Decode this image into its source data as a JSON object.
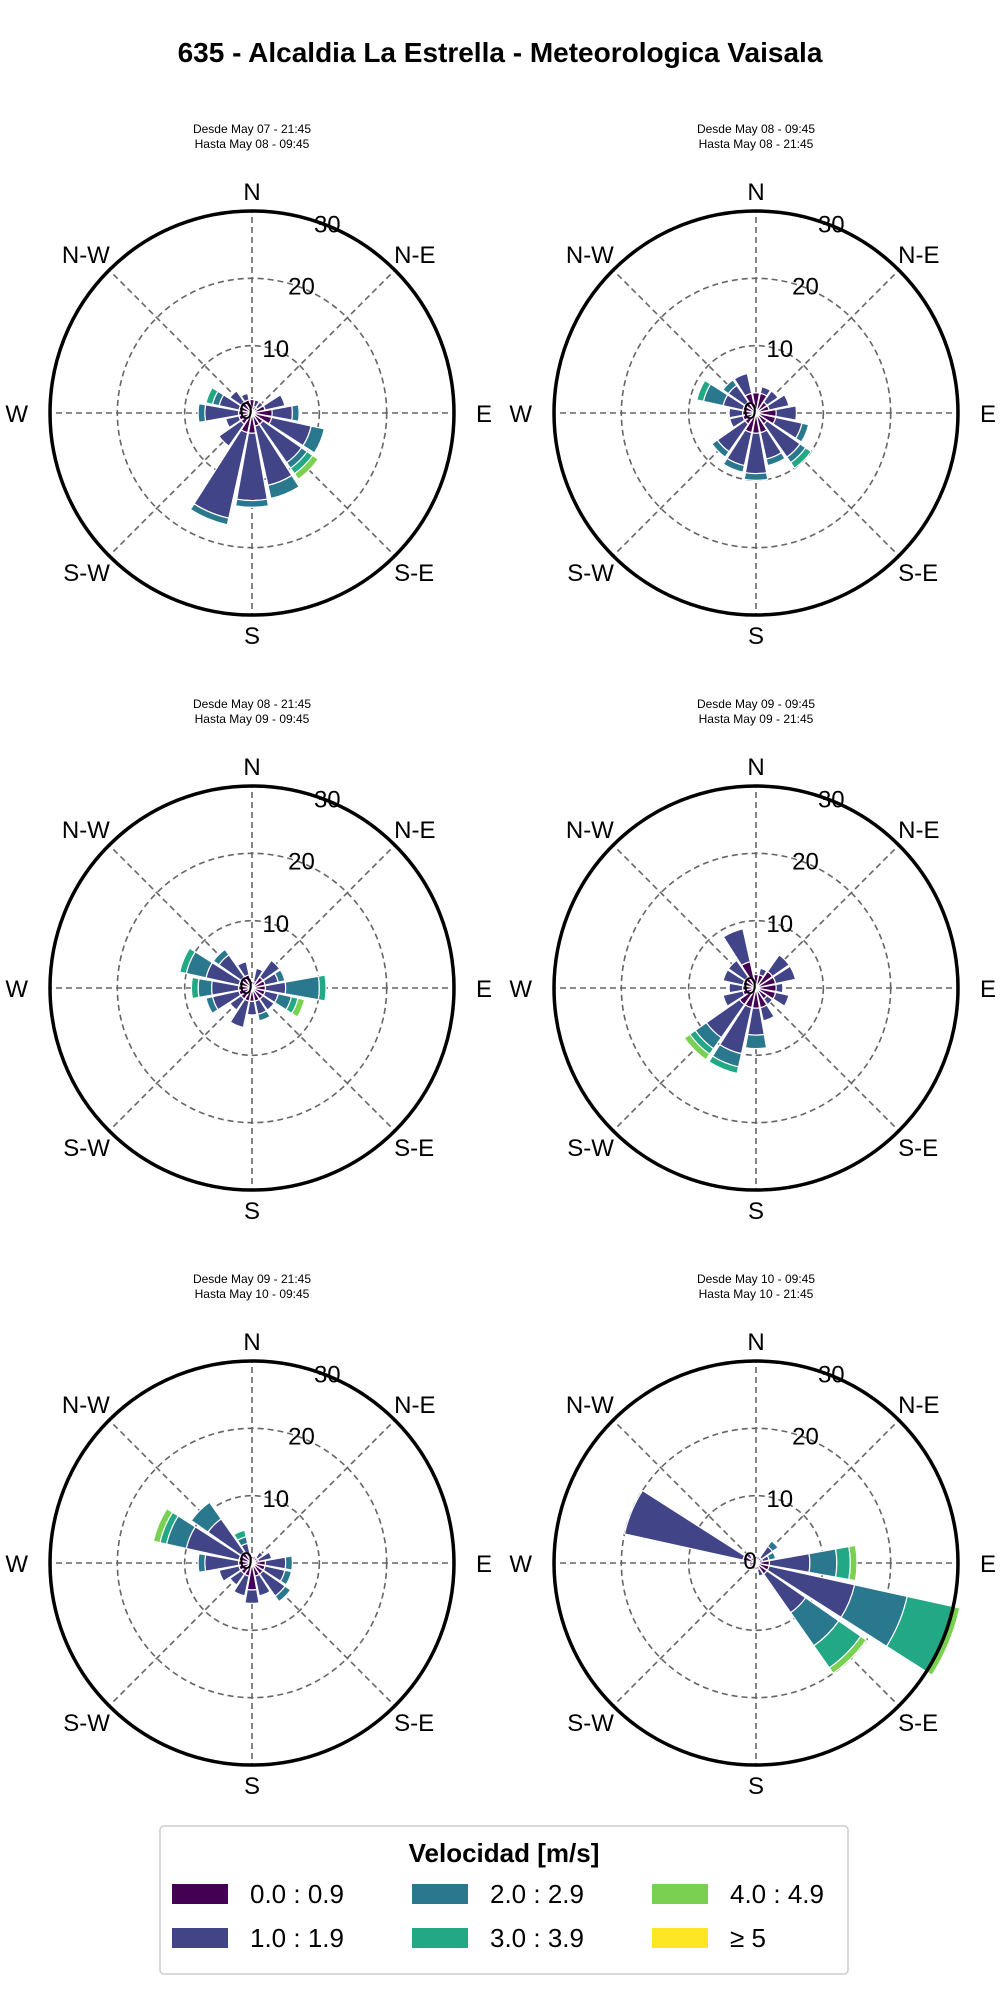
{
  "title": "635 - Alcaldia La Estrella - Meteorologica Vaisala",
  "legend": {
    "title": "Velocidad [m/s]",
    "bins": [
      {
        "label": "0.0 : 0.9",
        "color": "#440154"
      },
      {
        "label": "1.0 : 1.9",
        "color": "#414487"
      },
      {
        "label": "2.0 : 2.9",
        "color": "#2a788e"
      },
      {
        "label": "3.0 : 3.9",
        "color": "#22a884"
      },
      {
        "label": "4.0 : 4.9",
        "color": "#7ad151"
      },
      {
        "label": "≥  5",
        "color": "#fde725"
      }
    ]
  },
  "chart_data": {
    "type": "windrose",
    "units": "%",
    "rmax": 30,
    "radial_ticks": [
      "0",
      "10",
      "20",
      "30"
    ],
    "direction_labels": [
      "N",
      "N-E",
      "E",
      "S-E",
      "S",
      "S-W",
      "W",
      "N-W"
    ],
    "sector_width_deg": 22.5,
    "grid": true,
    "panels": [
      {
        "subtitle_1": "Desde May 07 - 21:45",
        "subtitle_2": "Hasta May 08 - 09:45",
        "sectors": [
          {
            "dir": 0,
            "values": [
              2,
              0,
              0,
              0,
              0,
              0
            ]
          },
          {
            "dir": 22.5,
            "values": [
              1,
              1,
              0,
              0,
              0,
              0
            ]
          },
          {
            "dir": 45,
            "values": [
              1,
              1,
              0,
              0,
              0,
              0
            ]
          },
          {
            "dir": 67.5,
            "values": [
              2,
              3,
              0,
              0,
              0,
              0
            ]
          },
          {
            "dir": 90,
            "values": [
              3,
              3,
              1,
              0,
              0,
              0
            ]
          },
          {
            "dir": 112.5,
            "values": [
              3,
              6,
              2,
              0,
              0,
              0
            ]
          },
          {
            "dir": 135,
            "values": [
              2,
              7,
              1,
              1,
              1,
              0
            ]
          },
          {
            "dir": 157.5,
            "values": [
              2,
              9,
              2,
              0,
              0,
              0
            ]
          },
          {
            "dir": 180,
            "values": [
              3,
              10,
              1,
              0,
              0,
              0
            ]
          },
          {
            "dir": 202.5,
            "values": [
              3,
              13,
              1,
              0,
              0,
              0
            ]
          },
          {
            "dir": 225,
            "values": [
              2,
              4,
              0,
              0,
              0,
              0
            ]
          },
          {
            "dir": 247.5,
            "values": [
              2,
              2,
              0,
              0,
              0,
              0
            ]
          },
          {
            "dir": 270,
            "values": [
              2,
              5,
              1,
              0,
              0,
              0
            ]
          },
          {
            "dir": 292.5,
            "values": [
              2,
              3,
              1,
              1,
              0,
              0
            ]
          },
          {
            "dir": 315,
            "values": [
              2,
              2,
              0,
              0,
              0,
              0
            ]
          },
          {
            "dir": 337.5,
            "values": [
              2,
              1,
              0,
              0,
              0,
              0
            ]
          }
        ]
      },
      {
        "subtitle_1": "Desde May 08 - 09:45",
        "subtitle_2": "Hasta May 08 - 21:45",
        "sectors": [
          {
            "dir": 0,
            "values": [
              3,
              0,
              0,
              0,
              0,
              0
            ]
          },
          {
            "dir": 22.5,
            "values": [
              3,
              1,
              0,
              0,
              0,
              0
            ]
          },
          {
            "dir": 45,
            "values": [
              2,
              2,
              0,
              0,
              0,
              0
            ]
          },
          {
            "dir": 67.5,
            "values": [
              2,
              3,
              0,
              0,
              0,
              0
            ]
          },
          {
            "dir": 90,
            "values": [
              3,
              3,
              0,
              0,
              0,
              0
            ]
          },
          {
            "dir": 112.5,
            "values": [
              3,
              4,
              1,
              0,
              0,
              0
            ]
          },
          {
            "dir": 135,
            "values": [
              2,
              6,
              1,
              1,
              0,
              0
            ]
          },
          {
            "dir": 157.5,
            "values": [
              3,
              4,
              1,
              0,
              0,
              0
            ]
          },
          {
            "dir": 180,
            "values": [
              3,
              6,
              1,
              0,
              0,
              0
            ]
          },
          {
            "dir": 202.5,
            "values": [
              3,
              5,
              1,
              0,
              0,
              0
            ]
          },
          {
            "dir": 225,
            "values": [
              2,
              5,
              1,
              0,
              0,
              0
            ]
          },
          {
            "dir": 247.5,
            "values": [
              2,
              2,
              0,
              0,
              0,
              0
            ]
          },
          {
            "dir": 270,
            "values": [
              2,
              2,
              0,
              0,
              0,
              0
            ]
          },
          {
            "dir": 292.5,
            "values": [
              2,
              3,
              3,
              1,
              0,
              0
            ]
          },
          {
            "dir": 315,
            "values": [
              2,
              3,
              1,
              0,
              0,
              0
            ]
          },
          {
            "dir": 337.5,
            "values": [
              3,
              3,
              0,
              0,
              0,
              0
            ]
          }
        ]
      },
      {
        "subtitle_1": "Desde May 08 - 21:45",
        "subtitle_2": "Hasta May 09 - 09:45",
        "sectors": [
          {
            "dir": 0,
            "values": [
              1,
              0,
              0,
              0,
              0,
              0
            ]
          },
          {
            "dir": 22.5,
            "values": [
              1,
              2,
              0,
              0,
              0,
              0
            ]
          },
          {
            "dir": 45,
            "values": [
              2,
              3,
              0,
              0,
              0,
              0
            ]
          },
          {
            "dir": 67.5,
            "values": [
              2,
              2,
              1,
              0,
              0,
              0
            ]
          },
          {
            "dir": 90,
            "values": [
              2,
              3,
              5,
              1,
              0,
              0
            ]
          },
          {
            "dir": 112.5,
            "values": [
              2,
              2,
              2,
              1,
              1,
              0
            ]
          },
          {
            "dir": 135,
            "values": [
              2,
              2,
              0,
              0,
              0,
              0
            ]
          },
          {
            "dir": 157.5,
            "values": [
              2,
              2,
              1,
              0,
              0,
              0
            ]
          },
          {
            "dir": 180,
            "values": [
              2,
              2,
              0,
              0,
              0,
              0
            ]
          },
          {
            "dir": 202.5,
            "values": [
              2,
              4,
              0,
              0,
              0,
              0
            ]
          },
          {
            "dir": 225,
            "values": [
              2,
              2,
              0,
              0,
              0,
              0
            ]
          },
          {
            "dir": 247.5,
            "values": [
              2,
              4,
              1,
              0,
              0,
              0
            ]
          },
          {
            "dir": 270,
            "values": [
              2,
              4,
              2,
              1,
              0,
              0
            ]
          },
          {
            "dir": 292.5,
            "values": [
              2,
              5,
              3,
              1,
              0,
              0
            ]
          },
          {
            "dir": 315,
            "values": [
              2,
              4,
              1,
              0,
              0,
              0
            ]
          },
          {
            "dir": 337.5,
            "values": [
              2,
              2,
              0,
              0,
              0,
              0
            ]
          }
        ]
      },
      {
        "subtitle_1": "Desde May 09 - 09:45",
        "subtitle_2": "Hasta May 09 - 21:45",
        "sectors": [
          {
            "dir": 0,
            "values": [
              2,
              0,
              0,
              0,
              0,
              0
            ]
          },
          {
            "dir": 22.5,
            "values": [
              2,
              1,
              0,
              0,
              0,
              0
            ]
          },
          {
            "dir": 45,
            "values": [
              3,
              3,
              0,
              0,
              0,
              0
            ]
          },
          {
            "dir": 67.5,
            "values": [
              3,
              3,
              0,
              0,
              0,
              0
            ]
          },
          {
            "dir": 90,
            "values": [
              3,
              1,
              0,
              0,
              0,
              0
            ]
          },
          {
            "dir": 112.5,
            "values": [
              3,
              2,
              0,
              0,
              0,
              0
            ]
          },
          {
            "dir": 135,
            "values": [
              2,
              1,
              0,
              0,
              0,
              0
            ]
          },
          {
            "dir": 157.5,
            "values": [
              3,
              2,
              0,
              0,
              0,
              0
            ]
          },
          {
            "dir": 180,
            "values": [
              3,
              4,
              2,
              0,
              0,
              0
            ]
          },
          {
            "dir": 202.5,
            "values": [
              3,
              7,
              2,
              1,
              0,
              0
            ]
          },
          {
            "dir": 225,
            "values": [
              3,
              6,
              2,
              1,
              1,
              0
            ]
          },
          {
            "dir": 247.5,
            "values": [
              2,
              3,
              0,
              0,
              0,
              0
            ]
          },
          {
            "dir": 270,
            "values": [
              2,
              2,
              0,
              0,
              0,
              0
            ]
          },
          {
            "dir": 292.5,
            "values": [
              2,
              3,
              0,
              0,
              0,
              0
            ]
          },
          {
            "dir": 315,
            "values": [
              2,
              3,
              0,
              0,
              0,
              0
            ]
          },
          {
            "dir": 337.5,
            "values": [
              4,
              5,
              0,
              0,
              0,
              0
            ]
          }
        ]
      },
      {
        "subtitle_1": "Desde May 09 - 21:45",
        "subtitle_2": "Hasta May 10 - 09:45",
        "sectors": [
          {
            "dir": 0,
            "values": [
              1,
              0,
              0,
              0,
              0,
              0
            ]
          },
          {
            "dir": 22.5,
            "values": [
              1,
              0,
              0,
              0,
              0,
              0
            ]
          },
          {
            "dir": 45,
            "values": [
              1,
              1,
              0,
              0,
              0,
              0
            ]
          },
          {
            "dir": 67.5,
            "values": [
              1,
              2,
              0,
              0,
              0,
              0
            ]
          },
          {
            "dir": 90,
            "values": [
              2,
              3,
              1,
              0,
              0,
              0
            ]
          },
          {
            "dir": 112.5,
            "values": [
              2,
              3,
              1,
              0,
              0,
              0
            ]
          },
          {
            "dir": 135,
            "values": [
              2,
              4,
              1,
              0,
              0,
              0
            ]
          },
          {
            "dir": 157.5,
            "values": [
              2,
              3,
              0,
              0,
              0,
              0
            ]
          },
          {
            "dir": 180,
            "values": [
              4,
              2,
              0,
              0,
              0,
              0
            ]
          },
          {
            "dir": 202.5,
            "values": [
              2,
              3,
              0,
              0,
              0,
              0
            ]
          },
          {
            "dir": 225,
            "values": [
              2,
              2,
              0,
              0,
              0,
              0
            ]
          },
          {
            "dir": 247.5,
            "values": [
              2,
              3,
              0,
              0,
              0,
              0
            ]
          },
          {
            "dir": 270,
            "values": [
              2,
              5,
              1,
              0,
              0,
              0
            ]
          },
          {
            "dir": 292.5,
            "values": [
              2,
              8,
              3,
              1,
              1,
              0
            ]
          },
          {
            "dir": 315,
            "values": [
              2,
              6,
              3,
              0,
              0,
              0
            ]
          },
          {
            "dir": 337.5,
            "values": [
              1,
              2,
              1,
              1,
              0,
              0
            ]
          }
        ]
      },
      {
        "subtitle_1": "Desde May 10 - 09:45",
        "subtitle_2": "Hasta May 10 - 21:45",
        "sectors": [
          {
            "dir": 0,
            "values": [
              1,
              0,
              0,
              0,
              0,
              0
            ]
          },
          {
            "dir": 22.5,
            "values": [
              1,
              0,
              0,
              0,
              0,
              0
            ]
          },
          {
            "dir": 45,
            "values": [
              1,
              2,
              1,
              0,
              0,
              0
            ]
          },
          {
            "dir": 67.5,
            "values": [
              1,
              1,
              1,
              0,
              0,
              0
            ]
          },
          {
            "dir": 90,
            "values": [
              2,
              6,
              4,
              2,
              1,
              0
            ]
          },
          {
            "dir": 112.5,
            "values": [
              2,
              13,
              8,
              7,
              1,
              0
            ]
          },
          {
            "dir": 135,
            "values": [
              2,
              7,
              6,
              4,
              1,
              0
            ]
          },
          {
            "dir": 157.5,
            "values": [
              1,
              1,
              0,
              0,
              0,
              0
            ]
          },
          {
            "dir": 180,
            "values": [
              1,
              0,
              0,
              0,
              0,
              0
            ]
          },
          {
            "dir": 202.5,
            "values": [
              1,
              0,
              0,
              0,
              0,
              0
            ]
          },
          {
            "dir": 225,
            "values": [
              1,
              0,
              0,
              0,
              0,
              0
            ]
          },
          {
            "dir": 247.5,
            "values": [
              1,
              0,
              0,
              0,
              0,
              0
            ]
          },
          {
            "dir": 270,
            "values": [
              1,
              0,
              0,
              0,
              0,
              0
            ]
          },
          {
            "dir": 292.5,
            "values": [
              2,
              18,
              0,
              0,
              0,
              0
            ]
          },
          {
            "dir": 315,
            "values": [
              1,
              1,
              0,
              0,
              0,
              0
            ]
          },
          {
            "dir": 337.5,
            "values": [
              1,
              0,
              0,
              0,
              0,
              0
            ]
          }
        ]
      }
    ]
  }
}
